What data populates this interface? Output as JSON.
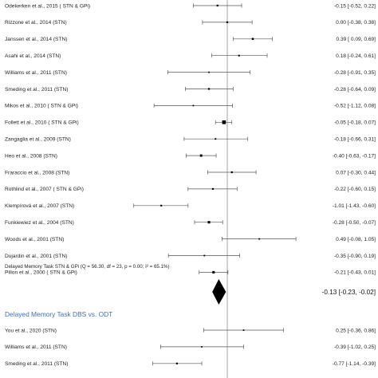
{
  "colors": {
    "marker": "#000000",
    "line": "#555555",
    "ref_line": "#8c8c8c",
    "section_heading": "#3f6fb5"
  },
  "chart_data": {
    "type": "forest",
    "x_null": 0,
    "studies": [
      {
        "label": "Odekerken et al., 2015 ( STN & GPi)",
        "est": -0.15,
        "lo": -0.52,
        "hi": 0.22,
        "ci_text": "-0.15 [-0.52,  0.22]"
      },
      {
        "label": "Rizzone et al., 2014 (STN)",
        "est": 0.0,
        "lo": -0.38,
        "hi": 0.38,
        "ci_text": "0.00 [-0.38,  0.38]"
      },
      {
        "label": "Janssen et al., 2014 (STN)",
        "est": 0.39,
        "lo": 0.09,
        "hi": 0.69,
        "ci_text": "0.39 [ 0.09,  0.69]"
      },
      {
        "label": "Asahi et al., 2014 (STN)",
        "est": 0.18,
        "lo": -0.24,
        "hi": 0.61,
        "ci_text": "0.18 [-0.24,  0.61]"
      },
      {
        "label": "Williams et al., 2011 (STN)",
        "est": -0.28,
        "lo": -0.91,
        "hi": 0.35,
        "ci_text": "-0.28 [-0.91,  0.35]"
      },
      {
        "label": "Smeding et al., 2011 (STN)",
        "est": -0.28,
        "lo": -0.64,
        "hi": 0.09,
        "ci_text": "-0.28 [-0.64,  0.09]"
      },
      {
        "label": "Mikos et al., 2010 ( STN & GPi)",
        "est": -0.52,
        "lo": -1.12,
        "hi": 0.08,
        "ci_text": "-0.52 [-1.12,  0.08]"
      },
      {
        "label": "Follett et al., 2010 ( STN & GPi)",
        "est": -0.05,
        "lo": -0.18,
        "hi": 0.07,
        "ci_text": "-0.05 [-0.18,  0.07]"
      },
      {
        "label": "Zangaglia et al., 2009 (STN)",
        "est": -0.18,
        "lo": -0.66,
        "hi": 0.31,
        "ci_text": "-0.18 [-0.66,  0.31]"
      },
      {
        "label": "Heo et al., 2008 (STN)",
        "est": -0.4,
        "lo": -0.63,
        "hi": -0.17,
        "ci_text": "-0.40 [-0.63, -0.17]"
      },
      {
        "label": "Fraraccio et al., 2008 (STN)",
        "est": 0.07,
        "lo": -0.3,
        "hi": 0.44,
        "ci_text": "0.07 [-0.30,  0.44]"
      },
      {
        "label": "Rothlind et al., 2007 ( STN & GPi)",
        "est": -0.22,
        "lo": -0.6,
        "hi": 0.15,
        "ci_text": "-0.22 [-0.60,  0.15]"
      },
      {
        "label": "Klempírová  et al., 2007 (STN)",
        "est": -1.01,
        "lo": -1.43,
        "hi": -0.6,
        "ci_text": "-1.01 [-1.43, -0.60]"
      },
      {
        "label": "Funkiewiez et al., 2004 (STN)",
        "est": -0.28,
        "lo": -0.5,
        "hi": -0.07,
        "ci_text": "-0.28 [-0.50, -0.07]"
      },
      {
        "label": "Woods et al., 2001 (STN)",
        "est": 0.49,
        "lo": -0.08,
        "hi": 1.05,
        "ci_text": "0.49 [-0.08,  1.05]"
      },
      {
        "label": "Dujardin et al., 2001 (STN)",
        "est": -0.35,
        "lo": -0.9,
        "hi": 0.19,
        "ci_text": "-0.35 [-0.90,  0.19]"
      },
      {
        "label": "Pillon et al., 2000 ( STN & GPi)",
        "est": -0.21,
        "lo": -0.43,
        "hi": 0.01,
        "ci_text": "-0.21 [-0.43,  0.01]"
      }
    ],
    "summary": {
      "label": "Delayed Memory Task STN & GPi (Q = 56.30, df = 23, p = 0.00; I² = 65.1%)",
      "est": -0.13,
      "lo": -0.23,
      "hi": -0.02,
      "ci_text": "-0.13 [-0.23, -0.02]"
    },
    "section2": {
      "heading": "Delayed Memory Task DBS vs. ODT",
      "studies": [
        {
          "label": "You et al., 2020 (STN)",
          "est": 0.25,
          "lo": -0.36,
          "hi": 0.86,
          "ci_text": "0.25 [-0.36,  0.86]"
        },
        {
          "label": "Williams et al., 2011 (STN)",
          "est": -0.39,
          "lo": -1.02,
          "hi": 0.25,
          "ci_text": "-0.39 [-1.02,  0.25]"
        },
        {
          "label": "Smeding et al., 2011 (STN)",
          "est": -0.77,
          "lo": -1.14,
          "hi": -0.39,
          "ci_text": "-0.77 [-1.14, -0.39]"
        }
      ]
    }
  }
}
